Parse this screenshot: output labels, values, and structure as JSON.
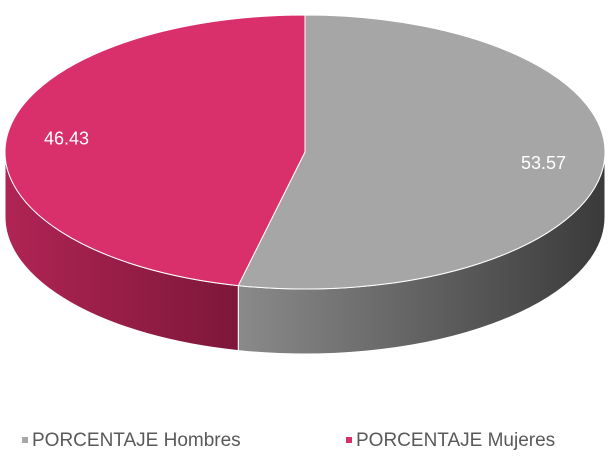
{
  "chart_data": {
    "type": "pie3d",
    "categories": [
      "PORCENTAJE Hombres",
      "PORCENTAJE Mujeres"
    ],
    "values": [
      53.57,
      46.43
    ],
    "colors": [
      "#a6a6a6",
      "#d9306b"
    ],
    "legend": "bottom"
  }
}
